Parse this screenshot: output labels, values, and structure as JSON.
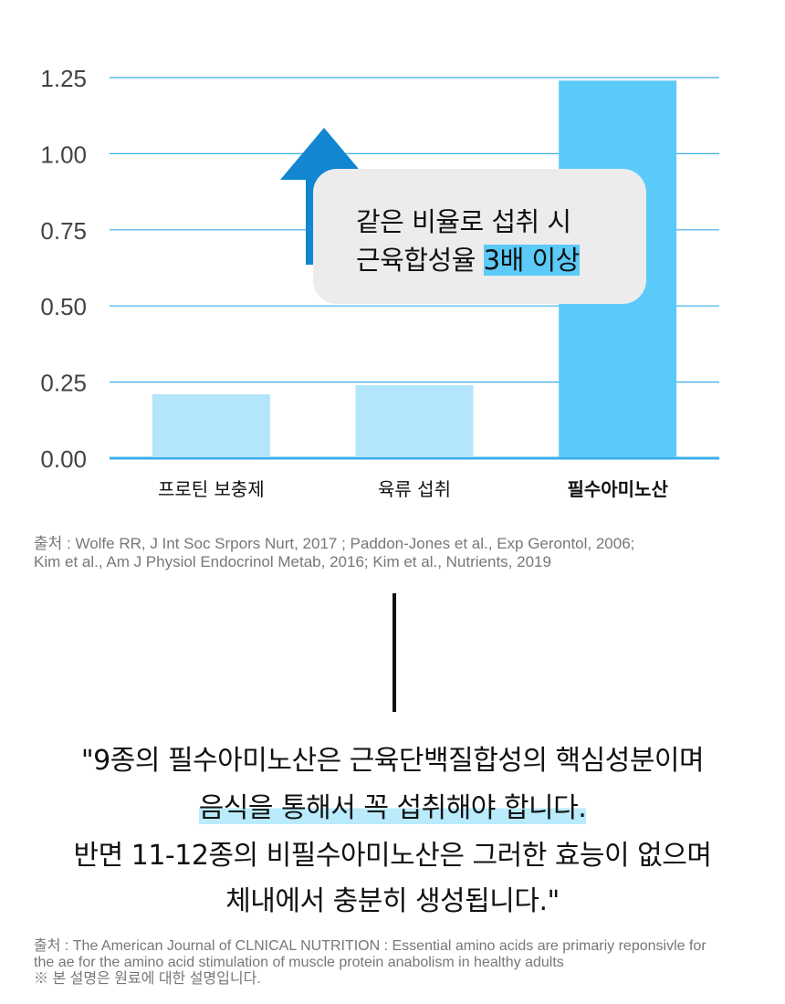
{
  "chart_data": {
    "type": "bar",
    "categories": [
      "프로틴 보충제",
      "육류 섭취",
      "필수아미노산"
    ],
    "values": [
      0.21,
      0.24,
      1.24
    ],
    "ylim": [
      0,
      1.25
    ],
    "yticks": [
      "0.00",
      "0.25",
      "0.50",
      "0.75",
      "1.00",
      "1.25"
    ],
    "grid": true,
    "colors": [
      "#b3e6fb",
      "#b3e6fb",
      "#5ccaf9"
    ],
    "annotation": {
      "line1": "같은 비율로 섭취 시",
      "line2_prefix": "근육합성율 ",
      "line2_highlight": "3배 이상"
    }
  },
  "colors": {
    "grid": "#3aaee8",
    "arrow": "#1286d0",
    "callout": "#ececec"
  },
  "source1": {
    "line1": "출처 : Wolfe RR, J Int Soc Srpors Nurt, 2017 ; Paddon-Jones et al., Exp Gerontol, 2006;",
    "line2": "Kim et al., Am J Physiol Endocrinol Metab, 2016; Kim et al., Nutrients, 2019"
  },
  "quote": {
    "line1": "\"9종의 필수아미노산은 근육단백질합성의 핵심성분이며",
    "line2": "음식을 통해서 꼭 섭취해야 합니다.",
    "line3": "반면 11-12종의 비필수아미노산은 그러한 효능이 없으며",
    "line4": "체내에서 충분히 생성됩니다.\""
  },
  "source2": {
    "line1": "출처 : The American Journal of CLNICAL NUTRITION : Essential amino acids are primariy reponsivle for",
    "line2": "the ae for the amino acid stimulation of muscle protein anabolism in healthy adults",
    "line3": "※ 본 설명은 원료에 대한 설명입니다."
  }
}
